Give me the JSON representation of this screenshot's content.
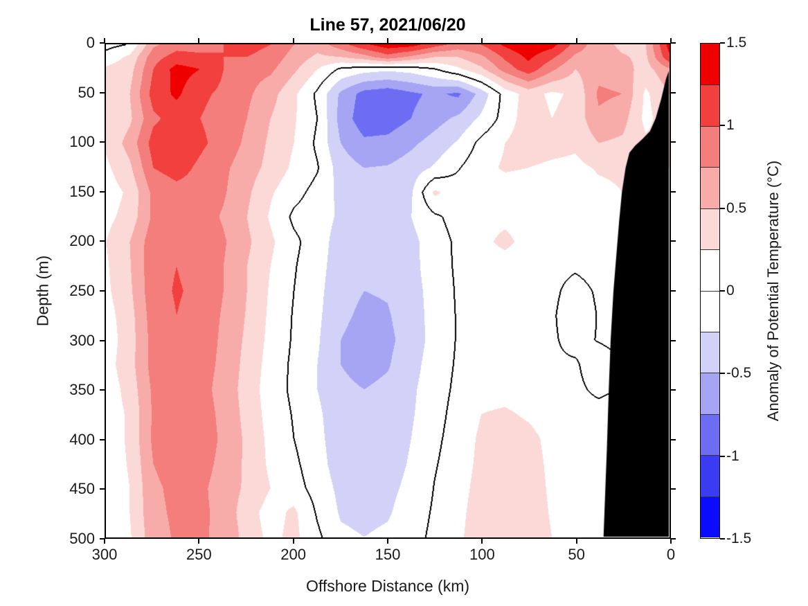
{
  "title": "Line 57, 2021/06/20",
  "axes": {
    "xlabel": "Offshore Distance (km)",
    "ylabel": "Depth (m)",
    "x_ticks": [
      300,
      250,
      200,
      150,
      100,
      50,
      0
    ],
    "y_ticks": [
      0,
      50,
      100,
      150,
      200,
      250,
      300,
      350,
      400,
      450,
      500
    ],
    "x_range": [
      300,
      0
    ],
    "y_range": [
      0,
      500
    ],
    "x_reversed": true,
    "y_reversed": true
  },
  "colorbar": {
    "label": "Anomaly of Potential Temperature (°C)",
    "tick_values": [
      1.5,
      1,
      0.5,
      0,
      -0.5,
      -1,
      -1.5
    ],
    "tick_labels": [
      "1.5",
      "1",
      "0.5",
      "0",
      "-0.5",
      "-1",
      "-1.5"
    ],
    "range": [
      -1.5,
      1.5
    ],
    "segment_step": 0.25
  },
  "chart_data": {
    "type": "heatmap",
    "subtype": "filled_contour",
    "title": "Line 57, 2021/06/20",
    "xlabel": "Offshore Distance (km)",
    "ylabel": "Depth (m)",
    "xlim": [
      300,
      0
    ],
    "ylim": [
      0,
      500
    ],
    "contour_interval": 0.25,
    "zero_contour_color": "#000000",
    "band_colors_low_to_high": [
      "#0B0BFE",
      "#3B3BF2",
      "#6D6DF3",
      "#A5A5F4",
      "#D2D2F8",
      "#FFFFFF",
      "#FFFFFF",
      "#FBD9D7",
      "#F8ACAA",
      "#F47E7B",
      "#F1403D",
      "#EE0000"
    ],
    "mask_color": "#000000",
    "field": {
      "x_km": [
        300,
        287.5,
        275,
        262.5,
        250,
        237.5,
        225,
        212.5,
        200,
        187.5,
        175,
        162.5,
        150,
        137.5,
        125,
        112.5,
        100,
        87.5,
        75,
        62.5,
        50,
        37.5,
        25,
        12.5,
        0
      ],
      "depth_m": [
        0,
        12.5,
        25,
        50,
        75,
        100,
        125,
        150,
        175,
        200,
        225,
        250,
        275,
        300,
        325,
        350,
        375,
        400,
        425,
        450,
        475,
        500
      ],
      "values": [
        [
          -0.08,
          0.02,
          0.7,
          0.9,
          0.9,
          1.0,
          1.1,
          1.0,
          0.75,
          0.6,
          0.9,
          1.2,
          1.4,
          1.35,
          1.1,
          0.9,
          1.0,
          1.3,
          1.45,
          1.35,
          0.9,
          0.6,
          0.45,
          0.5,
          1.35
        ],
        [
          0.1,
          0.3,
          0.9,
          1.1,
          1.05,
          1.0,
          1.0,
          0.9,
          0.65,
          0.45,
          0.5,
          0.65,
          0.9,
          0.7,
          0.5,
          0.5,
          0.7,
          1.05,
          1.3,
          1.05,
          0.7,
          0.62,
          0.52,
          0.45,
          1.2
        ],
        [
          0.3,
          0.4,
          1.0,
          1.35,
          1.25,
          1.0,
          0.85,
          0.8,
          0.55,
          0.25,
          -0.05,
          -0.15,
          -0.2,
          -0.15,
          -0.02,
          0.2,
          0.45,
          0.85,
          1.15,
          0.8,
          0.5,
          0.65,
          0.6,
          0.4,
          0.7
        ],
        [
          0.3,
          0.5,
          1.1,
          1.3,
          1.05,
          0.95,
          0.8,
          0.6,
          0.3,
          -0.05,
          -0.55,
          -0.85,
          -0.92,
          -0.8,
          -0.7,
          -0.8,
          -0.4,
          0.1,
          0.35,
          0.2,
          0.3,
          0.8,
          0.75,
          0.2,
          0.5
        ],
        [
          0.25,
          0.45,
          0.95,
          1.1,
          1.0,
          0.9,
          0.75,
          0.5,
          0.28,
          0.0,
          -0.6,
          -0.9,
          -0.88,
          -0.75,
          -0.6,
          -0.45,
          -0.2,
          0.1,
          0.4,
          0.25,
          0.35,
          0.7,
          0.6,
          0.18,
          0.4
        ],
        [
          0.3,
          0.6,
          1.1,
          1.2,
          1.05,
          0.9,
          0.7,
          0.45,
          0.25,
          -0.05,
          -0.5,
          -0.7,
          -0.68,
          -0.55,
          -0.4,
          -0.22,
          0.08,
          0.25,
          0.4,
          0.35,
          0.3,
          0.5,
          0.45,
          0.3,
          0.3
        ],
        [
          0.2,
          0.45,
          1.0,
          1.1,
          0.95,
          0.8,
          0.62,
          0.42,
          0.2,
          0.02,
          -0.38,
          -0.5,
          -0.48,
          -0.38,
          -0.22,
          -0.02,
          0.18,
          0.28,
          0.25,
          0.2,
          0.18,
          0.28,
          0.3,
          0.25,
          0.25
        ],
        [
          0.12,
          0.3,
          0.82,
          0.92,
          0.9,
          0.78,
          0.55,
          0.28,
          0.08,
          -0.08,
          -0.32,
          -0.42,
          -0.4,
          -0.28,
          0.3,
          0.12,
          0.12,
          0.12,
          0.12,
          0.08,
          0.1,
          0.18,
          0.25,
          0.2,
          0.2
        ],
        [
          0.18,
          0.35,
          0.8,
          0.9,
          0.88,
          0.72,
          0.5,
          0.22,
          -0.05,
          -0.12,
          -0.3,
          -0.38,
          -0.36,
          -0.25,
          -0.05,
          0.1,
          0.15,
          0.18,
          0.12,
          0.08,
          0.08,
          0.15,
          0.22,
          0.2,
          0.2
        ],
        [
          0.25,
          0.5,
          0.9,
          1.0,
          0.95,
          0.78,
          0.55,
          0.3,
          0.05,
          -0.12,
          -0.38,
          -0.46,
          -0.42,
          -0.32,
          -0.12,
          0.05,
          0.18,
          0.32,
          0.15,
          0.08,
          0.05,
          0.1,
          0.15,
          0.15,
          0.15
        ],
        [
          0.22,
          0.48,
          0.92,
          1.0,
          0.92,
          0.75,
          0.5,
          0.25,
          0.02,
          -0.15,
          -0.4,
          -0.48,
          -0.45,
          -0.33,
          -0.12,
          0.04,
          0.1,
          0.12,
          0.08,
          0.04,
          0.02,
          0.05,
          0.1,
          0.12,
          0.1
        ],
        [
          0.2,
          0.45,
          0.92,
          1.02,
          0.95,
          0.75,
          0.5,
          0.22,
          0.0,
          -0.18,
          -0.42,
          -0.5,
          -0.48,
          -0.35,
          -0.15,
          0.03,
          0.1,
          0.1,
          0.06,
          0.03,
          -0.05,
          0.02,
          0.08,
          0.1,
          0.1
        ],
        [
          0.15,
          0.4,
          0.88,
          1.0,
          0.92,
          0.72,
          0.48,
          0.2,
          -0.02,
          -0.2,
          -0.45,
          -0.55,
          -0.52,
          -0.38,
          -0.15,
          0.02,
          0.08,
          0.08,
          0.05,
          0.02,
          -0.09,
          0.01,
          0.06,
          0.08,
          0.08
        ],
        [
          0.12,
          0.38,
          0.85,
          0.98,
          0.9,
          0.7,
          0.45,
          0.18,
          -0.03,
          -0.22,
          -0.5,
          -0.6,
          -0.55,
          -0.4,
          -0.15,
          0.02,
          0.08,
          0.08,
          0.04,
          0.02,
          -0.05,
          0.01,
          0.05,
          0.08,
          0.08
        ],
        [
          0.15,
          0.4,
          0.85,
          0.95,
          0.88,
          0.68,
          0.42,
          0.15,
          -0.05,
          -0.25,
          -0.5,
          -0.58,
          -0.52,
          -0.35,
          -0.12,
          0.03,
          0.1,
          0.1,
          0.05,
          0.02,
          0.02,
          -0.09,
          -0.01,
          0.05,
          0.05
        ],
        [
          0.1,
          0.35,
          0.8,
          0.9,
          0.85,
          0.65,
          0.4,
          0.12,
          -0.05,
          -0.25,
          -0.45,
          -0.5,
          -0.45,
          -0.3,
          -0.1,
          0.05,
          0.12,
          0.12,
          0.08,
          0.04,
          0.03,
          -0.03,
          0.01,
          0.05,
          0.05
        ],
        [
          0.08,
          0.3,
          0.78,
          0.9,
          0.88,
          0.68,
          0.42,
          0.15,
          -0.02,
          -0.2,
          -0.42,
          -0.48,
          -0.42,
          -0.28,
          -0.08,
          0.08,
          0.25,
          0.3,
          0.2,
          0.08,
          0.05,
          0.05,
          0.08,
          0.08,
          0.08
        ],
        [
          0.08,
          0.3,
          0.8,
          0.95,
          0.9,
          0.7,
          0.45,
          0.18,
          0.0,
          -0.18,
          -0.4,
          -0.45,
          -0.4,
          -0.25,
          -0.05,
          0.1,
          0.3,
          0.4,
          0.35,
          0.15,
          0.08,
          0.08,
          0.1,
          0.1,
          0.1
        ],
        [
          0.06,
          0.28,
          0.75,
          0.88,
          0.85,
          0.68,
          0.45,
          0.2,
          0.05,
          -0.15,
          -0.38,
          -0.42,
          -0.38,
          -0.22,
          -0.02,
          0.12,
          0.32,
          0.42,
          0.38,
          0.18,
          0.1,
          0.1,
          0.12,
          0.12,
          0.12
        ],
        [
          0.05,
          0.25,
          0.7,
          0.82,
          0.8,
          0.65,
          0.45,
          0.25,
          0.1,
          -0.1,
          -0.32,
          -0.38,
          -0.32,
          -0.18,
          0.01,
          0.15,
          0.35,
          0.45,
          0.4,
          0.2,
          0.12,
          0.12,
          0.15,
          0.15,
          0.15
        ],
        [
          0.05,
          0.25,
          0.68,
          0.8,
          0.8,
          0.68,
          0.35,
          0.15,
          0.3,
          -0.03,
          -0.28,
          -0.32,
          -0.28,
          -0.12,
          0.03,
          0.18,
          0.38,
          0.45,
          0.42,
          0.22,
          0.15,
          0.15,
          0.18,
          0.18,
          0.18
        ],
        [
          0.04,
          0.22,
          0.65,
          0.78,
          0.78,
          0.7,
          0.4,
          0.18,
          0.32,
          0.05,
          -0.2,
          -0.25,
          -0.2,
          -0.08,
          0.05,
          0.2,
          0.4,
          0.48,
          0.45,
          0.25,
          0.18,
          0.18,
          0.2,
          0.2,
          0.2
        ]
      ]
    },
    "bathymetry_mask_km_depth": [
      [
        0,
        27
      ],
      [
        1.5,
        35
      ],
      [
        4,
        55
      ],
      [
        7,
        75
      ],
      [
        10,
        88
      ],
      [
        14,
        96
      ],
      [
        18,
        103
      ],
      [
        21,
        110
      ],
      [
        23,
        125
      ],
      [
        25,
        150
      ],
      [
        26.5,
        180
      ],
      [
        28,
        215
      ],
      [
        29.5,
        250
      ],
      [
        31,
        300
      ],
      [
        32,
        350
      ],
      [
        33,
        410
      ],
      [
        34,
        460
      ],
      [
        34.8,
        500
      ],
      [
        0,
        500
      ]
    ]
  },
  "layout_colors": {
    "background": "#ffffff",
    "axis_line": "#000000",
    "tick_label": "#1a1a1a"
  }
}
